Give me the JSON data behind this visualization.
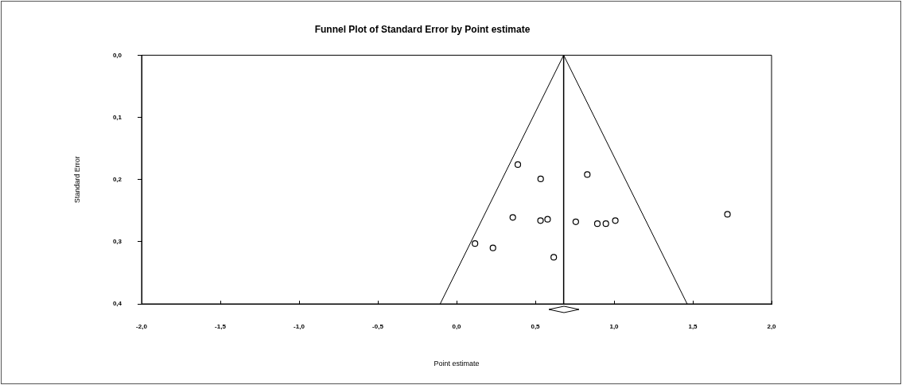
{
  "chart_data": {
    "type": "scatter",
    "title": "Funnel Plot of Standard Error by Point estimate",
    "xlabel": "Point estimate",
    "ylabel": "Standard Error",
    "xlim": [
      -2,
      2
    ],
    "xticks": [
      {
        "value": -2,
        "label": "-2,0"
      },
      {
        "value": -1.5,
        "label": "-1,5"
      },
      {
        "value": -1,
        "label": "-1,0"
      },
      {
        "value": -0.5,
        "label": "-0,5"
      },
      {
        "value": 0,
        "label": "0,0"
      },
      {
        "value": 0.5,
        "label": "0,5"
      },
      {
        "value": 1,
        "label": "1,0"
      },
      {
        "value": 1.5,
        "label": "1,5"
      },
      {
        "value": 2,
        "label": "2,0"
      }
    ],
    "ylim": [
      0.4,
      0
    ],
    "yticks": [
      {
        "value": 0,
        "label": "0,0"
      },
      {
        "value": 0.1,
        "label": "0,1"
      },
      {
        "value": 0.2,
        "label": "0,2"
      },
      {
        "value": 0.3,
        "label": "0,3"
      },
      {
        "value": 0.4,
        "label": "0,4"
      }
    ],
    "grid": false,
    "legend": false,
    "marker": "circle",
    "series": [
      {
        "type": "scatter",
        "color": "#000000",
        "x": [
          0.389,
          0.534,
          0.83,
          0.357,
          0.533,
          0.578,
          0.757,
          0.894,
          0.948,
          1.008,
          1.72,
          0.117,
          0.231,
          0.617
        ],
        "values": [
          0.176,
          0.199,
          0.192,
          0.261,
          0.266,
          0.264,
          0.268,
          0.271,
          0.271,
          0.266,
          0.256,
          0.303,
          0.31,
          0.325
        ]
      },
      {
        "type": "line",
        "color": "#000000",
        "marker": "none",
        "x": [
          -0.104,
          0.68,
          1.464
        ],
        "values": [
          0.4,
          0,
          0.4
        ]
      }
    ],
    "ref_lines": [
      {
        "axis": "x",
        "value": 0.68,
        "color": "#000000"
      }
    ]
  }
}
